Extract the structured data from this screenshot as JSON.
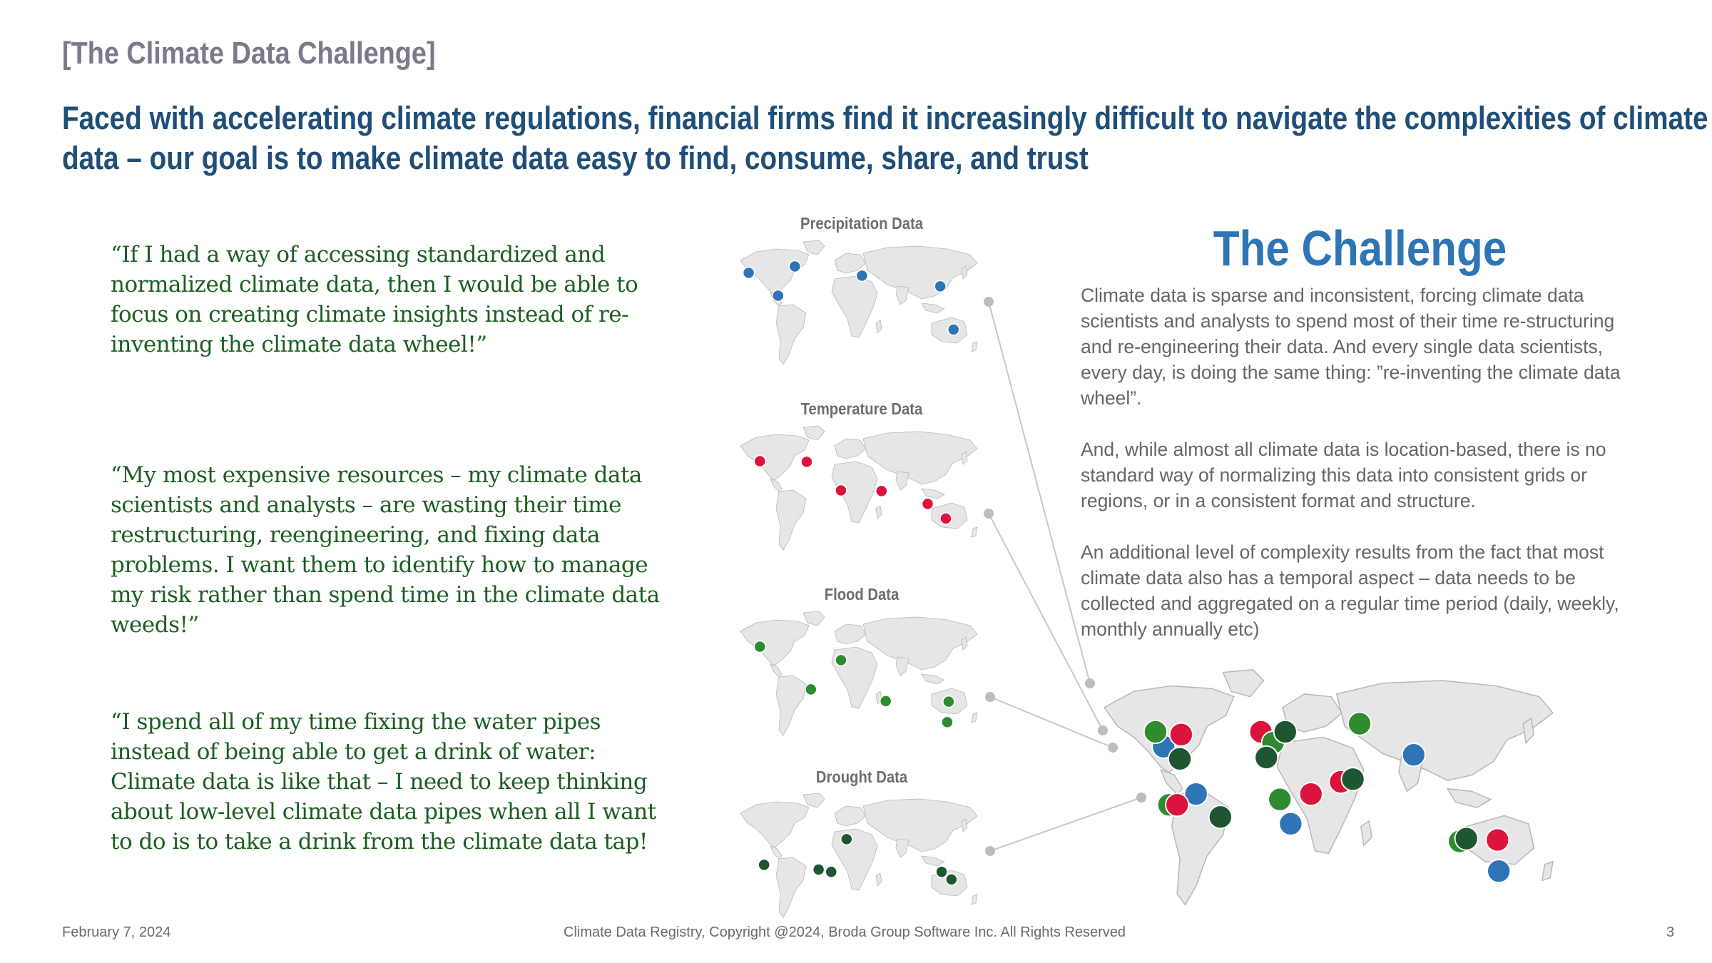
{
  "slide": {
    "section_label": "[The Climate Data Challenge]",
    "headline": "Faced with accelerating climate regulations, financial firms find it increasingly difficult to navigate the complexities of climate data – our goal is to make climate data easy to find, consume, share, and trust"
  },
  "quotes": [
    "“If I had a way of accessing standardized and normalized climate data, then I would be able to focus on creating climate insights instead of re-inventing the climate data wheel!”",
    "“My most expensive resources – my climate data scientists and analysts – are wasting their time restructuring, reengineering, and fixing data problems.  I want them to identify how to manage my risk rather than spend time in the climate data weeds!”",
    "“I spend all of my time fixing the water pipes instead of being able to get a drink of water: Climate data is like that – I need to keep thinking about low-level climate data pipes when all I want to do is to take a drink from the climate data tap!"
  ],
  "maps": [
    {
      "title": "Precipitation Data",
      "color": "#2e75b6"
    },
    {
      "title": "Temperature Data",
      "color": "#dc143c"
    },
    {
      "title": "Flood Data",
      "color": "#2e8b2e"
    },
    {
      "title": "Drought Data",
      "color": "#1e5631"
    }
  ],
  "challenge": {
    "title": "The Challenge",
    "paragraphs": [
      "Climate data is sparse and inconsistent, forcing climate data scientists and analysts to spend most of their time re-structuring and re-engineering their data. And every single data scientists, every day, is doing the same thing: ”re-inventing the climate data wheel”.",
      "And, while almost all climate data is location-based, there is no standard way of normalizing this data into consistent grids or regions, or in a consistent format and structure.",
      "An additional level of complexity results from the fact that most climate data also has a temporal aspect – data needs to be collected and aggregated on a regular time period (daily, weekly, monthly annually etc)"
    ]
  },
  "colors": {
    "precipitation": "#2e75b6",
    "temperature": "#dc143c",
    "flood": "#2e8b2e",
    "drought": "#1e5631",
    "land": "#e6e6e6"
  },
  "footer": {
    "date": "February 7, 2024",
    "copyright": "Climate Data Registry, Copyright @2024, Broda Group Software Inc. All Rights Reserved",
    "page": "3"
  }
}
